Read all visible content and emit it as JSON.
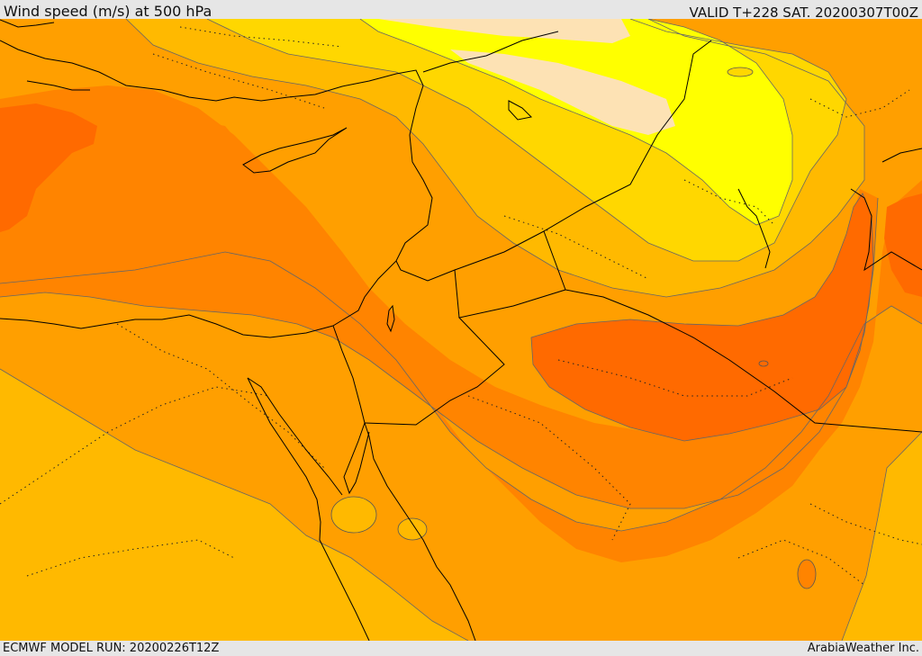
{
  "header": {
    "title": "Wind speed (m/s) at 500 hPa",
    "valid_time": "VALID T+228 SAT. 20200307T00Z"
  },
  "footer": {
    "model_run": "ECMWF MODEL RUN: 20200226T12Z",
    "credit": "ArabiaWeather Inc."
  },
  "map": {
    "colors": {
      "band_30_plus": "#ff6a00",
      "band_25_30": "#ff8400",
      "band_20_25": "#ff9f00",
      "band_15_20": "#ffb900",
      "band_10_15": "#ffd700",
      "band_5_10": "#ffff00",
      "band_0_5": "#fde2b4",
      "coastline": "#000000",
      "contour": "#555555"
    }
  }
}
